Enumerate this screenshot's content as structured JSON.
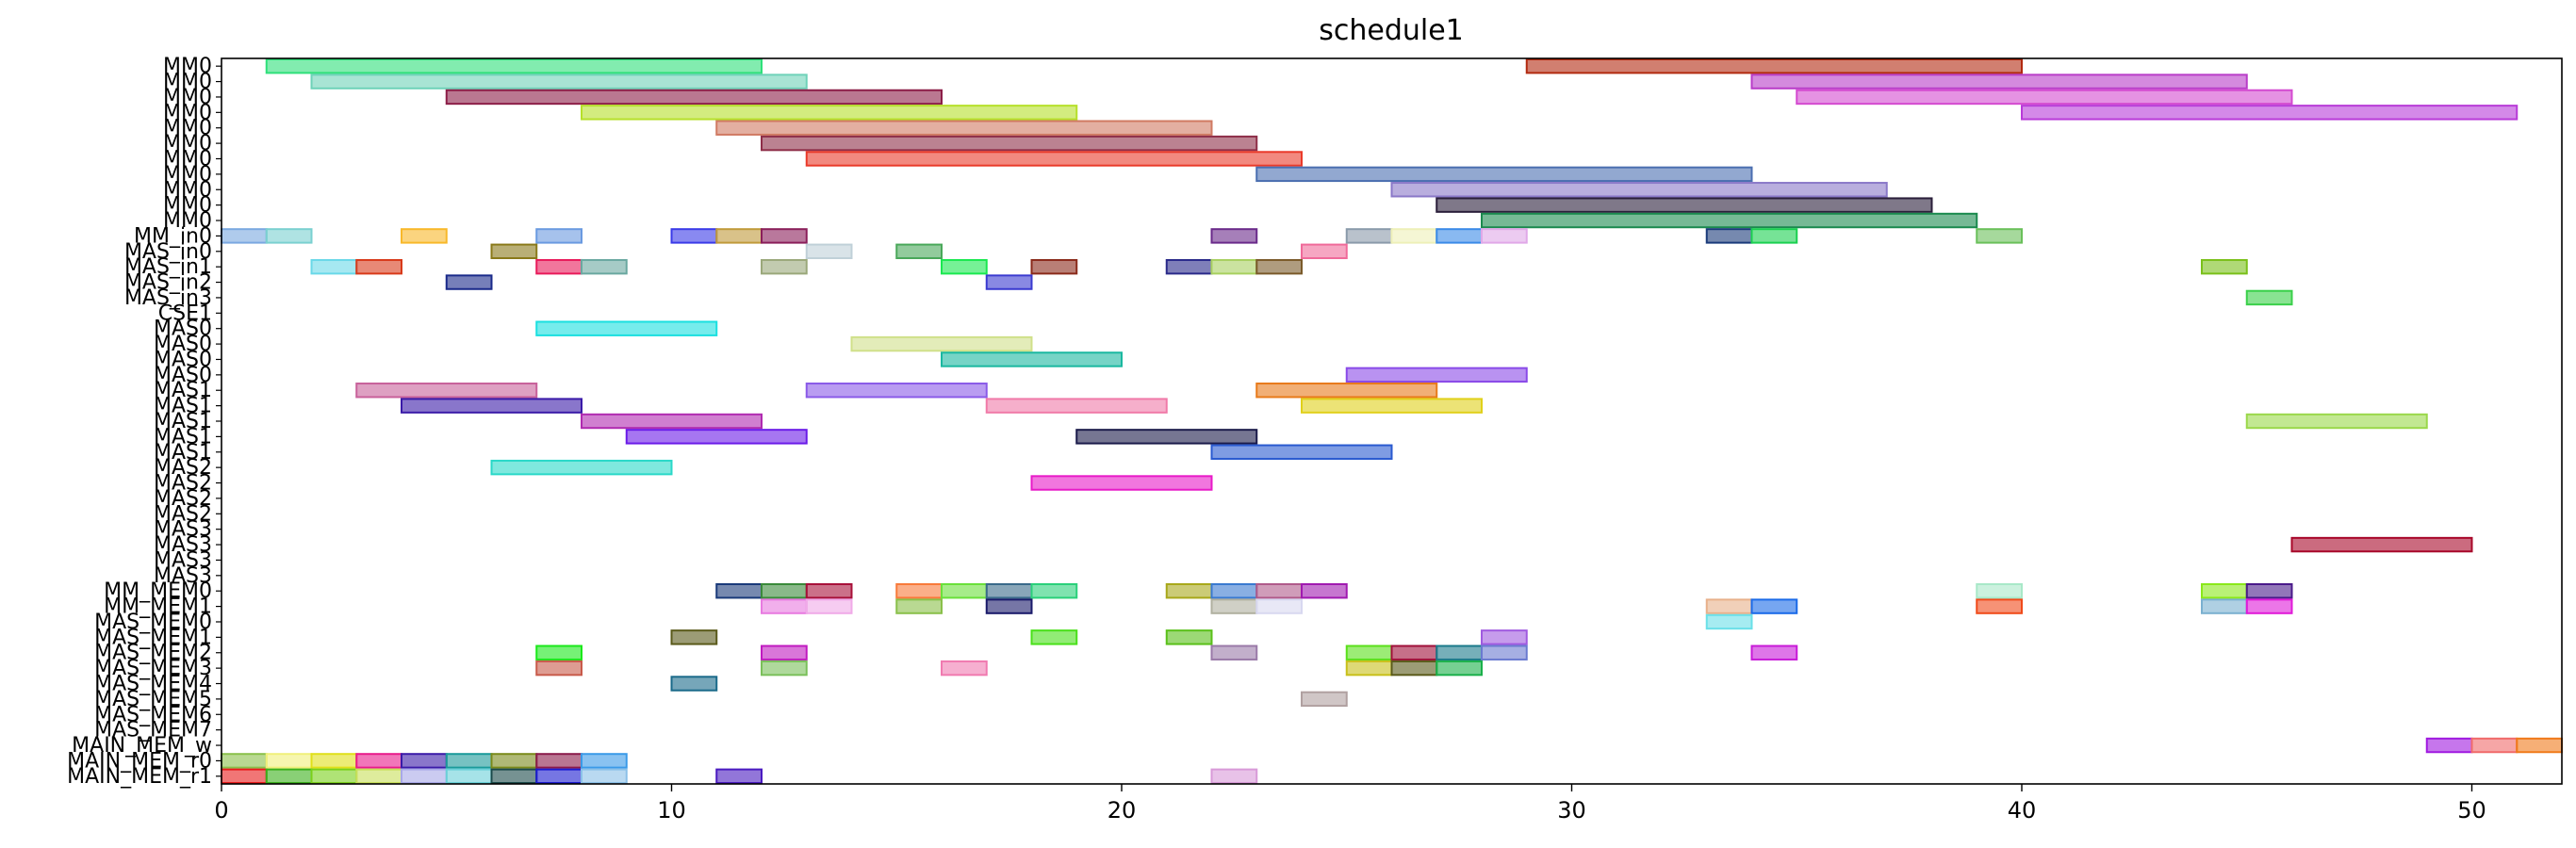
{
  "chart_data": {
    "type": "gantt",
    "title": "schedule1",
    "xlim": [
      0,
      52
    ],
    "xticks": [
      0,
      10,
      20,
      30,
      40,
      50
    ],
    "grid": false,
    "rows": [
      "MM0",
      "MM0",
      "MM0",
      "MM0",
      "MM0",
      "MM0",
      "MM0",
      "MM0",
      "MM0",
      "MM0",
      "MM0",
      "MM_in0",
      "MAS_in0",
      "MAS_in1",
      "MAS_in2",
      "MAS_in3",
      "CSE1",
      "MAS0",
      "MAS0",
      "MAS0",
      "MAS0",
      "MAS1",
      "MAS1",
      "MAS1",
      "MAS1",
      "MAS1",
      "MAS2",
      "MAS2",
      "MAS2",
      "MAS2",
      "MAS3",
      "MAS3",
      "MAS3",
      "MAS3",
      "MM_MEM0",
      "MM_MEM1",
      "MAS_MEM0",
      "MAS_MEM1",
      "MAS_MEM2",
      "MAS_MEM3",
      "MAS_MEM4",
      "MAS_MEM5",
      "MAS_MEM6",
      "MAS_MEM7",
      "MAIN_MEM_w",
      "MAIN_MEM_r0",
      "MAIN_MEM_r1"
    ],
    "tasks": [
      {
        "row": 0,
        "start": 1,
        "end": 12,
        "color": "#2ee07a"
      },
      {
        "row": 0,
        "start": 29,
        "end": 40,
        "color": "#b22a10"
      },
      {
        "row": 1,
        "start": 2,
        "end": 13,
        "color": "#6ed2b8"
      },
      {
        "row": 1,
        "start": 34,
        "end": 45,
        "color": "#b83cc8"
      },
      {
        "row": 2,
        "start": 5,
        "end": 16,
        "color": "#8c1e48"
      },
      {
        "row": 2,
        "start": 35,
        "end": 46,
        "color": "#d44ad0"
      },
      {
        "row": 3,
        "start": 8,
        "end": 19,
        "color": "#b6e02a"
      },
      {
        "row": 3,
        "start": 40,
        "end": 51,
        "color": "#b83ad8"
      },
      {
        "row": 4,
        "start": 11,
        "end": 22,
        "color": "#d07a62"
      },
      {
        "row": 5,
        "start": 12,
        "end": 23,
        "color": "#8e2e48"
      },
      {
        "row": 6,
        "start": 13,
        "end": 24,
        "color": "#ea3a2a"
      },
      {
        "row": 7,
        "start": 23,
        "end": 34,
        "color": "#4a6eb0"
      },
      {
        "row": 8,
        "start": 26,
        "end": 37,
        "color": "#8a78c8"
      },
      {
        "row": 9,
        "start": 27,
        "end": 38,
        "color": "#2a1e3a"
      },
      {
        "row": 10,
        "start": 28,
        "end": 39,
        "color": "#1a8a4e"
      },
      {
        "row": 11,
        "start": 0,
        "end": 1,
        "color": "#7aa8e0"
      },
      {
        "row": 11,
        "start": 1,
        "end": 2,
        "color": "#7ad0d0"
      },
      {
        "row": 11,
        "start": 4,
        "end": 5,
        "color": "#f8b82a"
      },
      {
        "row": 11,
        "start": 7,
        "end": 8,
        "color": "#6a9ae0"
      },
      {
        "row": 11,
        "start": 10,
        "end": 11,
        "color": "#3a3ae8"
      },
      {
        "row": 11,
        "start": 11,
        "end": 12,
        "color": "#c09a3a"
      },
      {
        "row": 11,
        "start": 12,
        "end": 13,
        "color": "#8a1e5a"
      },
      {
        "row": 11,
        "start": 22,
        "end": 23,
        "color": "#6a2a8a"
      },
      {
        "row": 11,
        "start": 25,
        "end": 26,
        "color": "#8a9aaa"
      },
      {
        "row": 11,
        "start": 26,
        "end": 27,
        "color": "#eef0b8"
      },
      {
        "row": 11,
        "start": 27,
        "end": 28,
        "color": "#3a8ae8"
      },
      {
        "row": 11,
        "start": 28,
        "end": 29,
        "color": "#e0a8e8"
      },
      {
        "row": 11,
        "start": 33,
        "end": 34,
        "color": "#1a3a7a"
      },
      {
        "row": 11,
        "start": 34,
        "end": 35,
        "color": "#1ad050"
      },
      {
        "row": 11,
        "start": 39,
        "end": 40,
        "color": "#6ac05a"
      },
      {
        "row": 12,
        "start": 6,
        "end": 7,
        "color": "#8a7a1a"
      },
      {
        "row": 12,
        "start": 13,
        "end": 14,
        "color": "#c0d0d8"
      },
      {
        "row": 12,
        "start": 15,
        "end": 16,
        "color": "#4aa85a"
      },
      {
        "row": 12,
        "start": 24,
        "end": 25,
        "color": "#f06a9a"
      },
      {
        "row": 13,
        "start": 2,
        "end": 3,
        "color": "#6ad8e8"
      },
      {
        "row": 13,
        "start": 3,
        "end": 4,
        "color": "#d83a1a"
      },
      {
        "row": 13,
        "start": 7,
        "end": 8,
        "color": "#e81a5a"
      },
      {
        "row": 13,
        "start": 8,
        "end": 9,
        "color": "#6aa8a0"
      },
      {
        "row": 13,
        "start": 12,
        "end": 13,
        "color": "#9aa87a"
      },
      {
        "row": 13,
        "start": 16,
        "end": 17,
        "color": "#1ae850"
      },
      {
        "row": 13,
        "start": 18,
        "end": 19,
        "color": "#8a2a1a"
      },
      {
        "row": 13,
        "start": 21,
        "end": 22,
        "color": "#2a2a8a"
      },
      {
        "row": 13,
        "start": 22,
        "end": 23,
        "color": "#a8d060"
      },
      {
        "row": 13,
        "start": 23,
        "end": 24,
        "color": "#7a5a2a"
      },
      {
        "row": 13,
        "start": 44,
        "end": 45,
        "color": "#7ac01a"
      },
      {
        "row": 14,
        "start": 5,
        "end": 6,
        "color": "#1a2a8a"
      },
      {
        "row": 14,
        "start": 17,
        "end": 18,
        "color": "#3a3ad0"
      },
      {
        "row": 15,
        "start": 45,
        "end": 46,
        "color": "#3ad04a"
      },
      {
        "row": 17,
        "start": 7,
        "end": 11,
        "color": "#1ae0e0"
      },
      {
        "row": 18,
        "start": 14,
        "end": 18,
        "color": "#d0e08a"
      },
      {
        "row": 19,
        "start": 16,
        "end": 20,
        "color": "#1ab8a0"
      },
      {
        "row": 20,
        "start": 25,
        "end": 29,
        "color": "#8a4ae8"
      },
      {
        "row": 21,
        "start": 3,
        "end": 7,
        "color": "#c8609a"
      },
      {
        "row": 21,
        "start": 13,
        "end": 17,
        "color": "#8a5ae8"
      },
      {
        "row": 21,
        "start": 23,
        "end": 27,
        "color": "#e87a1a"
      },
      {
        "row": 22,
        "start": 4,
        "end": 8,
        "color": "#3a1aa8"
      },
      {
        "row": 22,
        "start": 17,
        "end": 21,
        "color": "#f07aa8"
      },
      {
        "row": 22,
        "start": 24,
        "end": 28,
        "color": "#e0d01a"
      },
      {
        "row": 23,
        "start": 8,
        "end": 12,
        "color": "#b02ab0"
      },
      {
        "row": 23,
        "start": 45,
        "end": 49,
        "color": "#9ad84a"
      },
      {
        "row": 24,
        "start": 9,
        "end": 13,
        "color": "#6a1ae8"
      },
      {
        "row": 24,
        "start": 19,
        "end": 23,
        "color": "#1a1a4a"
      },
      {
        "row": 25,
        "start": 22,
        "end": 26,
        "color": "#2a5ad0"
      },
      {
        "row": 26,
        "start": 6,
        "end": 10,
        "color": "#2ad8c8"
      },
      {
        "row": 27,
        "start": 18,
        "end": 22,
        "color": "#e81ac8"
      },
      {
        "row": 31,
        "start": 46,
        "end": 50,
        "color": "#a8082a"
      },
      {
        "row": 34,
        "start": 11,
        "end": 12,
        "color": "#1a3a7a"
      },
      {
        "row": 34,
        "start": 12,
        "end": 13,
        "color": "#3a8a3a"
      },
      {
        "row": 34,
        "start": 13,
        "end": 14,
        "color": "#a8103a"
      },
      {
        "row": 34,
        "start": 15,
        "end": 16,
        "color": "#f87a3a"
      },
      {
        "row": 34,
        "start": 16,
        "end": 17,
        "color": "#6ae03a"
      },
      {
        "row": 34,
        "start": 17,
        "end": 18,
        "color": "#3a6a8a"
      },
      {
        "row": 34,
        "start": 18,
        "end": 19,
        "color": "#2ad07a"
      },
      {
        "row": 34,
        "start": 21,
        "end": 22,
        "color": "#a8a81a"
      },
      {
        "row": 34,
        "start": 22,
        "end": 23,
        "color": "#3a7ad0"
      },
      {
        "row": 34,
        "start": 23,
        "end": 24,
        "color": "#b05a8a"
      },
      {
        "row": 34,
        "start": 24,
        "end": 25,
        "color": "#a01ab0"
      },
      {
        "row": 34,
        "start": 39,
        "end": 40,
        "color": "#a8e8c8"
      },
      {
        "row": 34,
        "start": 44,
        "end": 45,
        "color": "#8ae81a"
      },
      {
        "row": 34,
        "start": 45,
        "end": 46,
        "color": "#4a1a8a"
      },
      {
        "row": 35,
        "start": 12,
        "end": 13,
        "color": "#e87ae0"
      },
      {
        "row": 35,
        "start": 13,
        "end": 14,
        "color": "#f0aae8"
      },
      {
        "row": 35,
        "start": 15,
        "end": 16,
        "color": "#8ac04a"
      },
      {
        "row": 35,
        "start": 17,
        "end": 18,
        "color": "#1a1a6a"
      },
      {
        "row": 35,
        "start": 22,
        "end": 23,
        "color": "#b0b0a0"
      },
      {
        "row": 35,
        "start": 23,
        "end": 24,
        "color": "#d8d8f0"
      },
      {
        "row": 35,
        "start": 33,
        "end": 34,
        "color": "#e8b08a"
      },
      {
        "row": 35,
        "start": 34,
        "end": 35,
        "color": "#1a6ae8"
      },
      {
        "row": 35,
        "start": 39,
        "end": 40,
        "color": "#f04a1a"
      },
      {
        "row": 35,
        "start": 44,
        "end": 45,
        "color": "#7ab0d0"
      },
      {
        "row": 35,
        "start": 45,
        "end": 46,
        "color": "#e01ad8"
      },
      {
        "row": 36,
        "start": 33,
        "end": 34,
        "color": "#6ae0e8"
      },
      {
        "row": 37,
        "start": 10,
        "end": 11,
        "color": "#5a5a1a"
      },
      {
        "row": 37,
        "start": 18,
        "end": 19,
        "color": "#4ae01a"
      },
      {
        "row": 37,
        "start": 21,
        "end": 22,
        "color": "#5ac01a"
      },
      {
        "row": 37,
        "start": 28,
        "end": 29,
        "color": "#a05ae0"
      },
      {
        "row": 38,
        "start": 7,
        "end": 8,
        "color": "#1ae81a"
      },
      {
        "row": 38,
        "start": 12,
        "end": 13,
        "color": "#c01ac0"
      },
      {
        "row": 38,
        "start": 22,
        "end": 23,
        "color": "#9a7aa8"
      },
      {
        "row": 38,
        "start": 25,
        "end": 26,
        "color": "#5ae01a"
      },
      {
        "row": 38,
        "start": 26,
        "end": 27,
        "color": "#a0103a"
      },
      {
        "row": 38,
        "start": 27,
        "end": 28,
        "color": "#1a7a8a"
      },
      {
        "row": 38,
        "start": 28,
        "end": 29,
        "color": "#6a7ad0"
      },
      {
        "row": 38,
        "start": 34,
        "end": 35,
        "color": "#c81ad8"
      },
      {
        "row": 39,
        "start": 7,
        "end": 8,
        "color": "#c85a4a"
      },
      {
        "row": 39,
        "start": 12,
        "end": 13,
        "color": "#7ac05a"
      },
      {
        "row": 39,
        "start": 16,
        "end": 17,
        "color": "#f07ab0"
      },
      {
        "row": 39,
        "start": 25,
        "end": 26,
        "color": "#c8c01a"
      },
      {
        "row": 39,
        "start": 26,
        "end": 27,
        "color": "#5a5a1a"
      },
      {
        "row": 39,
        "start": 27,
        "end": 28,
        "color": "#1ab04a"
      },
      {
        "row": 40,
        "start": 10,
        "end": 11,
        "color": "#1a6a8a"
      },
      {
        "row": 41,
        "start": 24,
        "end": 25,
        "color": "#b0a0a0"
      },
      {
        "row": 44,
        "start": 49,
        "end": 50,
        "color": "#a01ae0"
      },
      {
        "row": 44,
        "start": 50,
        "end": 51,
        "color": "#f06a6a"
      },
      {
        "row": 44,
        "start": 51,
        "end": 52,
        "color": "#f07a1a"
      },
      {
        "row": 45,
        "start": 0,
        "end": 1,
        "color": "#8ac04a"
      },
      {
        "row": 45,
        "start": 1,
        "end": 2,
        "color": "#f0f07a"
      },
      {
        "row": 45,
        "start": 2,
        "end": 3,
        "color": "#e0e01a"
      },
      {
        "row": 45,
        "start": 3,
        "end": 4,
        "color": "#e81a8a"
      },
      {
        "row": 45,
        "start": 4,
        "end": 5,
        "color": "#3a1aa8"
      },
      {
        "row": 45,
        "start": 5,
        "end": 6,
        "color": "#1a9a9a"
      },
      {
        "row": 45,
        "start": 6,
        "end": 7,
        "color": "#7a8a1a"
      },
      {
        "row": 45,
        "start": 7,
        "end": 8,
        "color": "#8a1a4a"
      },
      {
        "row": 45,
        "start": 8,
        "end": 9,
        "color": "#3a9ae8"
      },
      {
        "row": 46,
        "start": 0,
        "end": 1,
        "color": "#e81a1a"
      },
      {
        "row": 46,
        "start": 1,
        "end": 2,
        "color": "#3ab01a"
      },
      {
        "row": 46,
        "start": 2,
        "end": 3,
        "color": "#7ad01a"
      },
      {
        "row": 46,
        "start": 3,
        "end": 4,
        "color": "#c8e05a"
      },
      {
        "row": 46,
        "start": 4,
        "end": 5,
        "color": "#a8a8e8"
      },
      {
        "row": 46,
        "start": 5,
        "end": 6,
        "color": "#6ad0d8"
      },
      {
        "row": 46,
        "start": 6,
        "end": 7,
        "color": "#1a4a4a"
      },
      {
        "row": 46,
        "start": 7,
        "end": 8,
        "color": "#1a1ad0"
      },
      {
        "row": 46,
        "start": 8,
        "end": 9,
        "color": "#8ac0e8"
      },
      {
        "row": 46,
        "start": 11,
        "end": 12,
        "color": "#4a1ac0"
      },
      {
        "row": 46,
        "start": 22,
        "end": 23,
        "color": "#d89ad8"
      }
    ]
  }
}
